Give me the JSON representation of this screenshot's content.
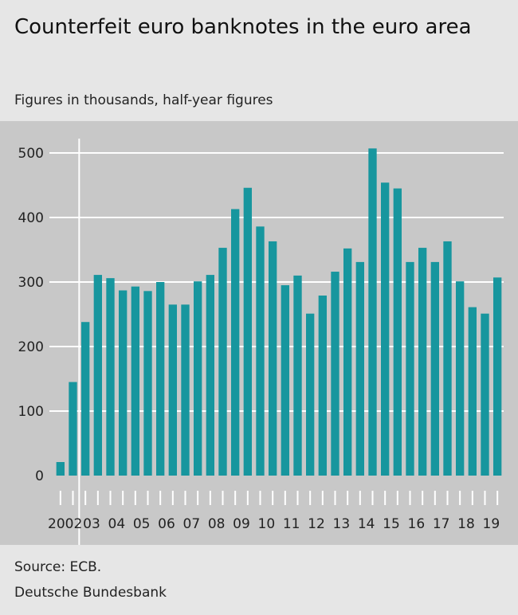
{
  "header": {
    "title": "Counterfeit euro banknotes in the euro area",
    "subtitle": "Figures in thousands, half-year figures"
  },
  "footer": {
    "source": "Source: ECB.",
    "org": "Deutsche Bundesbank"
  },
  "colors": {
    "bar": "#17969e",
    "panel": "#c8c8c8",
    "background": "#e6e6e6",
    "grid": "#ffffff"
  },
  "chart_data": {
    "type": "bar",
    "title": "Counterfeit euro banknotes in the euro area",
    "subtitle": "Figures in thousands, half-year figures",
    "xlabel": "",
    "ylabel": "",
    "ylim": [
      0,
      500
    ],
    "yticks": [
      0,
      100,
      200,
      300,
      400,
      500
    ],
    "grid": true,
    "year_labels": [
      "2002",
      "03",
      "04",
      "05",
      "06",
      "07",
      "08",
      "09",
      "10",
      "11",
      "12",
      "13",
      "14",
      "15",
      "16",
      "17",
      "18",
      "19"
    ],
    "categories": [
      "2002 H1",
      "2002 H2",
      "2003 H1",
      "2003 H2",
      "2004 H1",
      "2004 H2",
      "2005 H1",
      "2005 H2",
      "2006 H1",
      "2006 H2",
      "2007 H1",
      "2007 H2",
      "2008 H1",
      "2008 H2",
      "2009 H1",
      "2009 H2",
      "2010 H1",
      "2010 H2",
      "2011 H1",
      "2011 H2",
      "2012 H1",
      "2012 H2",
      "2013 H1",
      "2013 H2",
      "2014 H1",
      "2014 H2",
      "2015 H1",
      "2015 H2",
      "2016 H1",
      "2016 H2",
      "2017 H1",
      "2017 H2",
      "2018 H1",
      "2018 H2",
      "2019 H1",
      "2019 H2"
    ],
    "values": [
      21,
      145,
      238,
      311,
      306,
      287,
      293,
      286,
      300,
      265,
      265,
      301,
      311,
      353,
      413,
      446,
      386,
      363,
      295,
      310,
      251,
      279,
      316,
      352,
      331,
      507,
      454,
      445,
      331,
      353,
      331,
      363,
      301,
      261,
      251,
      307
    ],
    "major_gridline_after_years": [
      "2002",
      "2007",
      "2012",
      "2017"
    ]
  }
}
